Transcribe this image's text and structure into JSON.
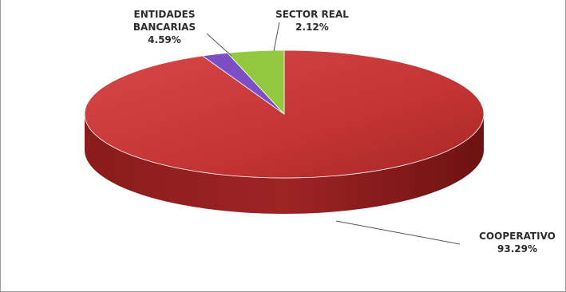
{
  "chart_data": {
    "type": "pie",
    "title": "",
    "style": "3d-exploded-none",
    "slices": [
      {
        "label": "COOPERATIVO",
        "value": 93.29,
        "value_label": "93.29%",
        "color": "#c93a3a"
      },
      {
        "label": "SECTOR REAL",
        "value": 2.12,
        "value_label": "2.12%",
        "color": "#7c4fc4"
      },
      {
        "label": "ENTIDADES BANCARIAS",
        "value": 4.59,
        "value_label": "4.59%",
        "color": "#93c83e"
      }
    ]
  }
}
